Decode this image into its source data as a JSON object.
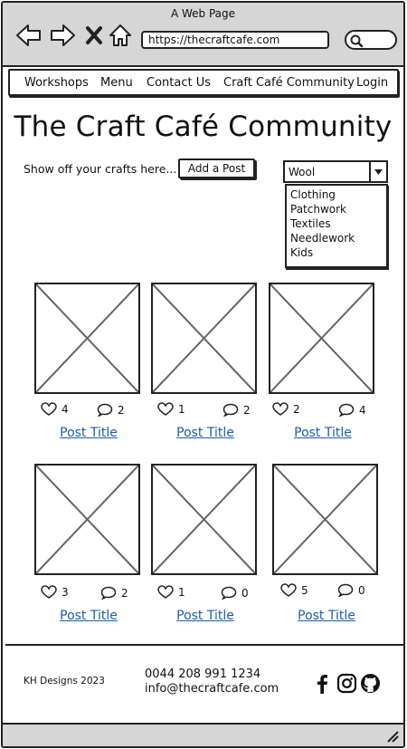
{
  "browser": {
    "window_title": "A Web Page",
    "url": "https://thecraftcafe.com",
    "icons": [
      "back-arrow-icon",
      "forward-arrow-icon",
      "close-icon",
      "home-icon",
      "search-icon"
    ]
  },
  "nav": {
    "items": [
      {
        "label": "Workshops"
      },
      {
        "label": "Menu"
      },
      {
        "label": "Contact Us"
      },
      {
        "label": "Craft Café Community"
      },
      {
        "label": "Login"
      }
    ]
  },
  "main": {
    "title": "The Craft Café Community",
    "intro": "Show off your crafts here...",
    "add_post_label": "Add a Post",
    "category_select": {
      "value": "Wool",
      "options": [
        "Clothing",
        "Patchwork",
        "Textiles",
        "Needlework",
        "Kids"
      ]
    },
    "posts": [
      {
        "likes": "4",
        "comments": "2",
        "title": "Post Title"
      },
      {
        "likes": "1",
        "comments": "2",
        "title": "Post Title"
      },
      {
        "likes": "2",
        "comments": "4",
        "title": "Post Title"
      },
      {
        "likes": "3",
        "comments": "2",
        "title": "Post Title"
      },
      {
        "likes": "1",
        "comments": "0",
        "title": "Post Title"
      },
      {
        "likes": "5",
        "comments": "0",
        "title": "Post Title"
      }
    ]
  },
  "footer": {
    "copyright": "KH Designs 2023",
    "phone": "0044 208 991 1234",
    "email": "info@thecraftcafe.com",
    "social": [
      "facebook-icon",
      "instagram-icon",
      "github-icon"
    ]
  },
  "colors": {
    "chrome": "#d6d6d6",
    "link": "#1d5ea8",
    "outline": "#222222"
  }
}
